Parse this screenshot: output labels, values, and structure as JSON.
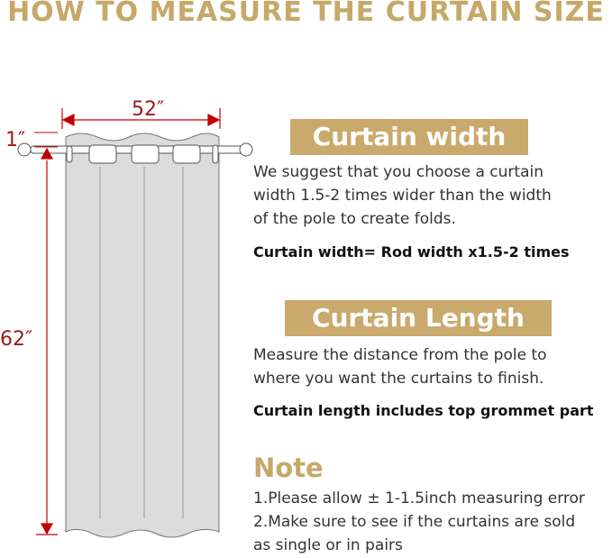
{
  "title": "HOW TO MEASURE THE CURTAIN SIZE",
  "diagram": {
    "width_label": "52″",
    "length_label": "62″",
    "header_label": "1″",
    "accent_color": "#c00000",
    "curtain_color": "#dcdcdc"
  },
  "width_section": {
    "heading": "Curtain width",
    "lines": [
      "We suggest that you choose a curtain",
      "width 1.5-2 times wider than the width",
      "of the pole to create folds."
    ],
    "formula": "Curtain width= Rod width x1.5-2 times"
  },
  "length_section": {
    "heading": "Curtain Length",
    "lines": [
      "Measure the distance from the pole to",
      "where you want the curtains to finish."
    ],
    "formula": "Curtain length includes top grommet part"
  },
  "note": {
    "heading": "Note",
    "lines": [
      "1.Please allow ± 1-1.5inch measuring error",
      "2.Make sure to see if the curtains are sold",
      "as single or in pairs"
    ]
  },
  "brand_color": "#c9aa6c"
}
